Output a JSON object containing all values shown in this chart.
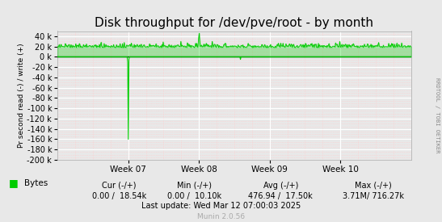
{
  "title": "Disk throughput for /dev/pve/root - by month",
  "ylabel": "Pr second read (-) / write (+)",
  "xlabel_ticks": [
    "Week 07",
    "Week 08",
    "Week 09",
    "Week 10"
  ],
  "ylim": [
    -200000,
    50000
  ],
  "yticks": [
    40000,
    20000,
    0,
    -20000,
    -40000,
    -60000,
    -80000,
    -100000,
    -120000,
    -140000,
    -160000,
    -180000,
    -200000
  ],
  "bg_color": "#e8e8e8",
  "grid_color_major": "#ffffff",
  "grid_color_minor": "#ffcccc",
  "line_color": "#00cc00",
  "zero_line_color": "#000000",
  "title_fontsize": 11,
  "legend_text": "Bytes",
  "legend_color": "#00cc00",
  "stats_line3": "Last update: Wed Mar 12 07:00:03 2025",
  "munin_version": "Munin 2.0.56",
  "right_label": "RRDTOOL / TOBI OETIKER",
  "n_points": 600,
  "spike_read_index": 120,
  "spike_read_value": -160000,
  "spike_read2_index": 310,
  "spike_read2_value": -5000,
  "spike_write_index": 240,
  "spike_write_value": 46000,
  "base_write_value": 18000,
  "write_noise_scale": 4000
}
